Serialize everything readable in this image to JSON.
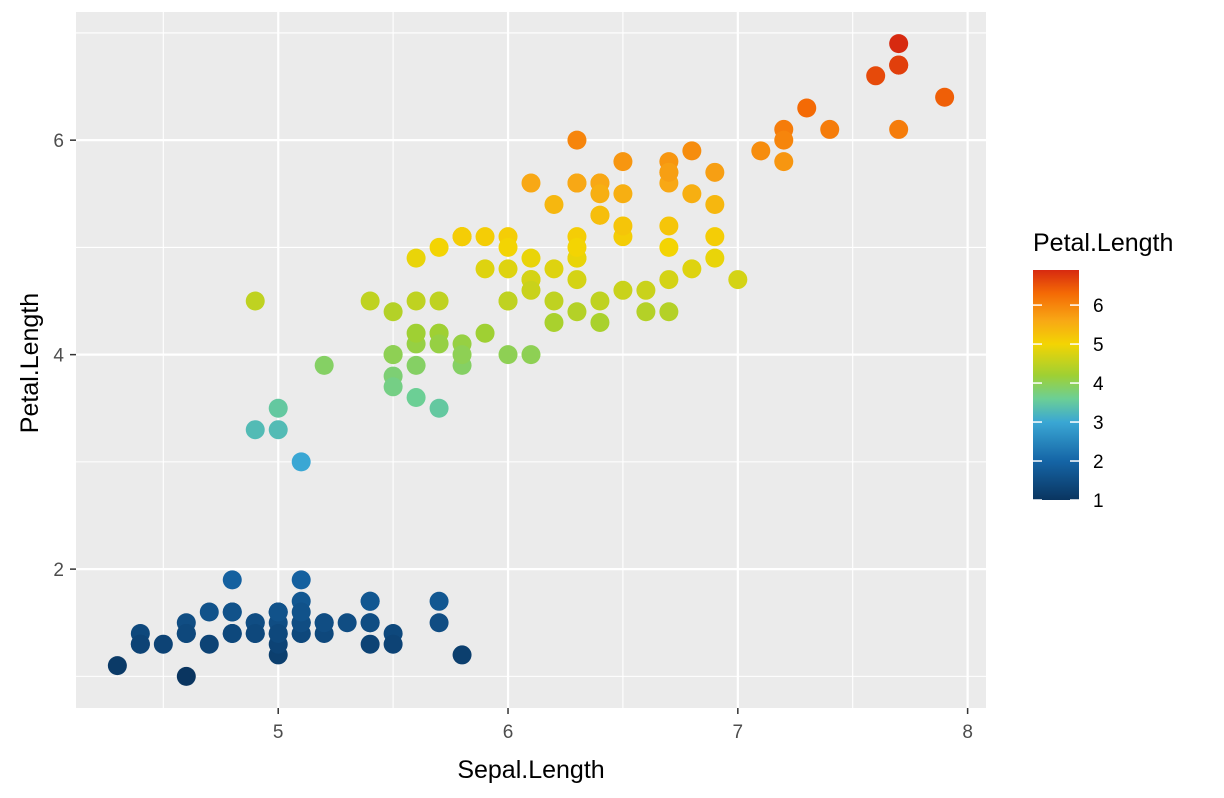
{
  "chart_data": {
    "type": "scatter",
    "xlabel": "Sepal.Length",
    "ylabel": "Petal.Length",
    "xlim": [
      4.3,
      7.9
    ],
    "ylim": [
      1.0,
      6.9
    ],
    "x_ticks": [
      5,
      6,
      7,
      8
    ],
    "y_ticks": [
      2,
      4,
      6
    ],
    "x_tick_labels": [
      "5",
      "6",
      "7",
      "8"
    ],
    "y_tick_labels": [
      "2",
      "4",
      "6"
    ],
    "grid": true,
    "panel_background": "#ebebeb",
    "grid_color": "#ffffff",
    "legend": {
      "title": "Petal.Length",
      "position": "right",
      "ticks": [
        1,
        2,
        3,
        4,
        5,
        6
      ],
      "tick_labels": [
        "1",
        "2",
        "3",
        "4",
        "5",
        "6"
      ],
      "color_stops": [
        {
          "value": 1.0,
          "color": "#0a3560"
        },
        {
          "value": 2.0,
          "color": "#1565a6"
        },
        {
          "value": 3.0,
          "color": "#3aa7d4"
        },
        {
          "value": 3.6,
          "color": "#6ccf95"
        },
        {
          "value": 4.2,
          "color": "#9fd033"
        },
        {
          "value": 5.0,
          "color": "#f3d403"
        },
        {
          "value": 5.6,
          "color": "#f8a815"
        },
        {
          "value": 6.3,
          "color": "#f46a05"
        },
        {
          "value": 6.9,
          "color": "#d72a10"
        }
      ]
    },
    "points": [
      [
        5.1,
        1.4
      ],
      [
        4.9,
        1.4
      ],
      [
        4.7,
        1.3
      ],
      [
        4.6,
        1.5
      ],
      [
        5.0,
        1.4
      ],
      [
        5.4,
        1.7
      ],
      [
        4.6,
        1.4
      ],
      [
        5.0,
        1.5
      ],
      [
        4.4,
        1.4
      ],
      [
        4.9,
        1.5
      ],
      [
        5.4,
        1.5
      ],
      [
        4.8,
        1.6
      ],
      [
        4.8,
        1.4
      ],
      [
        4.3,
        1.1
      ],
      [
        5.8,
        1.2
      ],
      [
        5.7,
        1.5
      ],
      [
        5.4,
        1.3
      ],
      [
        5.1,
        1.4
      ],
      [
        5.7,
        1.7
      ],
      [
        5.1,
        1.5
      ],
      [
        5.4,
        1.7
      ],
      [
        5.1,
        1.5
      ],
      [
        4.6,
        1.0
      ],
      [
        5.1,
        1.7
      ],
      [
        4.8,
        1.9
      ],
      [
        5.0,
        1.6
      ],
      [
        5.0,
        1.6
      ],
      [
        5.2,
        1.5
      ],
      [
        5.2,
        1.4
      ],
      [
        4.7,
        1.6
      ],
      [
        4.8,
        1.6
      ],
      [
        5.4,
        1.5
      ],
      [
        5.2,
        1.5
      ],
      [
        5.5,
        1.4
      ],
      [
        4.9,
        1.5
      ],
      [
        5.0,
        1.2
      ],
      [
        5.5,
        1.3
      ],
      [
        4.9,
        1.4
      ],
      [
        4.4,
        1.3
      ],
      [
        5.1,
        1.5
      ],
      [
        5.0,
        1.3
      ],
      [
        4.5,
        1.3
      ],
      [
        4.4,
        1.3
      ],
      [
        5.0,
        1.6
      ],
      [
        5.1,
        1.9
      ],
      [
        4.8,
        1.4
      ],
      [
        5.1,
        1.6
      ],
      [
        4.6,
        1.4
      ],
      [
        5.3,
        1.5
      ],
      [
        5.0,
        1.4
      ],
      [
        7.0,
        4.7
      ],
      [
        6.4,
        4.5
      ],
      [
        6.9,
        4.9
      ],
      [
        5.5,
        4.0
      ],
      [
        6.5,
        4.6
      ],
      [
        5.7,
        4.5
      ],
      [
        6.3,
        4.7
      ],
      [
        4.9,
        3.3
      ],
      [
        6.6,
        4.6
      ],
      [
        5.2,
        3.9
      ],
      [
        5.0,
        3.5
      ],
      [
        5.9,
        4.2
      ],
      [
        6.0,
        4.0
      ],
      [
        6.1,
        4.7
      ],
      [
        5.6,
        3.6
      ],
      [
        6.7,
        4.4
      ],
      [
        5.6,
        4.5
      ],
      [
        5.8,
        4.1
      ],
      [
        6.2,
        4.5
      ],
      [
        5.6,
        3.9
      ],
      [
        5.9,
        4.8
      ],
      [
        6.1,
        4.0
      ],
      [
        6.3,
        4.9
      ],
      [
        6.1,
        4.7
      ],
      [
        6.4,
        4.3
      ],
      [
        6.6,
        4.4
      ],
      [
        6.8,
        4.8
      ],
      [
        6.7,
        5.0
      ],
      [
        6.0,
        4.5
      ],
      [
        5.7,
        3.5
      ],
      [
        5.5,
        3.8
      ],
      [
        5.5,
        3.7
      ],
      [
        5.8,
        3.9
      ],
      [
        6.0,
        5.1
      ],
      [
        5.4,
        4.5
      ],
      [
        6.0,
        4.5
      ],
      [
        6.7,
        4.7
      ],
      [
        6.3,
        4.4
      ],
      [
        5.6,
        4.1
      ],
      [
        5.5,
        4.0
      ],
      [
        5.5,
        4.4
      ],
      [
        6.1,
        4.6
      ],
      [
        5.8,
        4.0
      ],
      [
        5.0,
        3.3
      ],
      [
        5.6,
        4.2
      ],
      [
        5.7,
        4.2
      ],
      [
        5.7,
        4.2
      ],
      [
        6.2,
        4.3
      ],
      [
        5.1,
        3.0
      ],
      [
        5.7,
        4.1
      ],
      [
        6.3,
        6.0
      ],
      [
        5.8,
        5.1
      ],
      [
        7.1,
        5.9
      ],
      [
        6.3,
        5.6
      ],
      [
        6.5,
        5.8
      ],
      [
        7.6,
        6.6
      ],
      [
        4.9,
        4.5
      ],
      [
        7.3,
        6.3
      ],
      [
        6.7,
        5.8
      ],
      [
        7.2,
        6.1
      ],
      [
        6.5,
        5.1
      ],
      [
        6.4,
        5.3
      ],
      [
        6.8,
        5.5
      ],
      [
        5.7,
        5.0
      ],
      [
        5.8,
        5.1
      ],
      [
        6.4,
        5.3
      ],
      [
        6.5,
        5.5
      ],
      [
        7.7,
        6.7
      ],
      [
        7.7,
        6.9
      ],
      [
        6.0,
        5.0
      ],
      [
        6.9,
        5.7
      ],
      [
        5.6,
        4.9
      ],
      [
        7.7,
        6.7
      ],
      [
        6.3,
        4.9
      ],
      [
        6.7,
        5.7
      ],
      [
        7.2,
        6.0
      ],
      [
        6.2,
        4.8
      ],
      [
        6.1,
        4.9
      ],
      [
        6.4,
        5.6
      ],
      [
        7.2,
        5.8
      ],
      [
        7.4,
        6.1
      ],
      [
        7.9,
        6.4
      ],
      [
        6.4,
        5.6
      ],
      [
        6.3,
        5.1
      ],
      [
        6.1,
        5.6
      ],
      [
        7.7,
        6.1
      ],
      [
        6.3,
        5.6
      ],
      [
        6.4,
        5.5
      ],
      [
        6.0,
        4.8
      ],
      [
        6.9,
        5.4
      ],
      [
        6.7,
        5.6
      ],
      [
        6.9,
        5.1
      ],
      [
        5.8,
        5.1
      ],
      [
        6.8,
        5.9
      ],
      [
        6.7,
        5.7
      ],
      [
        6.7,
        5.2
      ],
      [
        6.3,
        5.0
      ],
      [
        6.5,
        5.2
      ],
      [
        6.2,
        5.4
      ],
      [
        5.9,
        5.1
      ]
    ]
  }
}
